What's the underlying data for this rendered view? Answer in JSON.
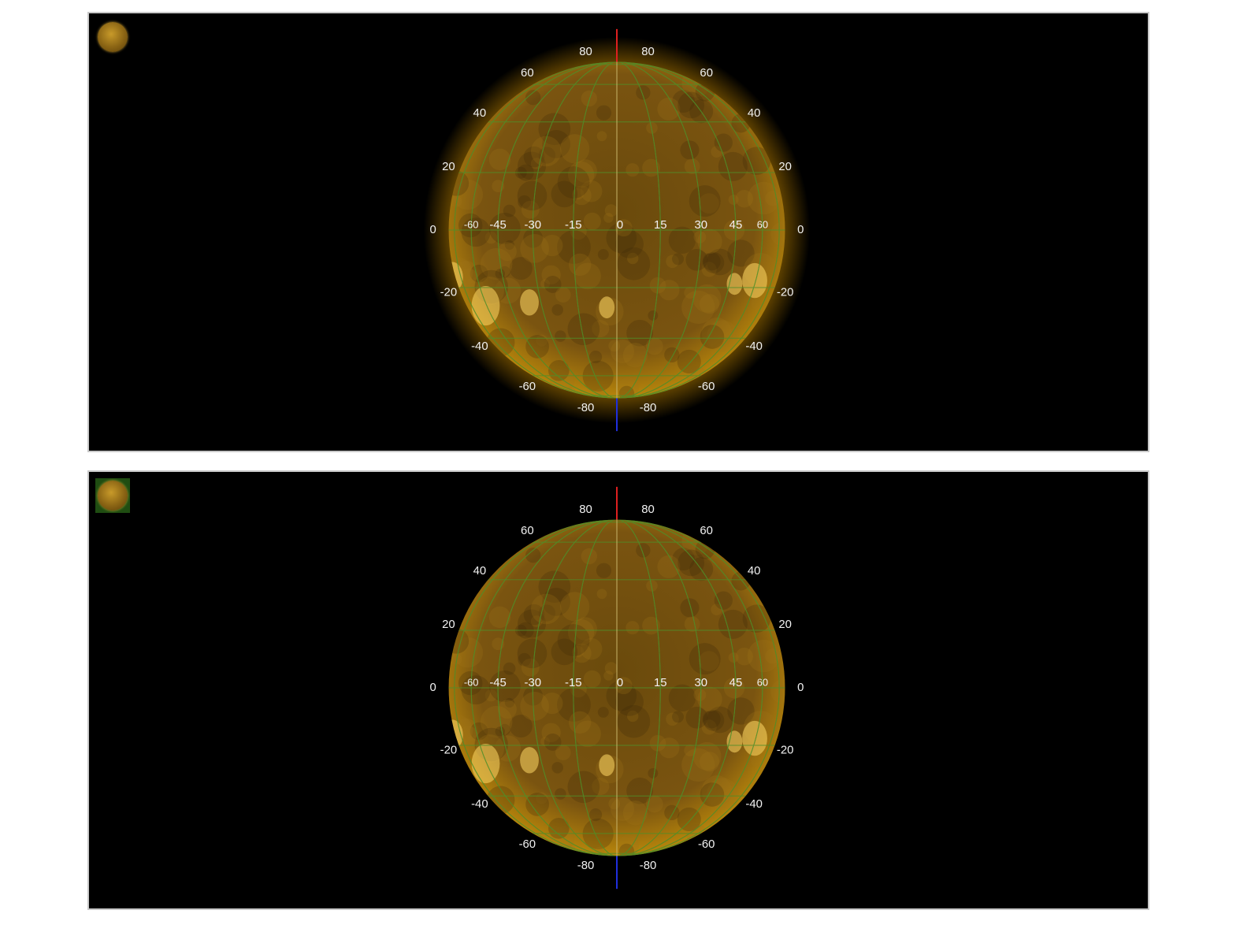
{
  "panels": [
    {
      "id": "top",
      "thumbnail_selected": false,
      "corona_glow": true,
      "lat_labels_left": [
        "80",
        "60",
        "40",
        "20",
        "0",
        "-20",
        "-40",
        "-60",
        "-80"
      ],
      "lat_labels_right": [
        "80",
        "60",
        "40",
        "20",
        "0",
        "-20",
        "-40",
        "-60",
        "-80"
      ],
      "lon_labels": [
        "-60",
        "-45",
        "-30",
        "-15",
        "0",
        "15",
        "30",
        "45",
        "60"
      ]
    },
    {
      "id": "bottom",
      "thumbnail_selected": true,
      "corona_glow": false,
      "lat_labels_left": [
        "80",
        "60",
        "40",
        "20",
        "0",
        "-20",
        "-40",
        "-60",
        "-80"
      ],
      "lat_labels_right": [
        "80",
        "60",
        "40",
        "20",
        "0",
        "-20",
        "-40",
        "-60",
        "-80"
      ],
      "lon_labels": [
        "-60",
        "-45",
        "-30",
        "-15",
        "0",
        "15",
        "30",
        "45",
        "60"
      ]
    }
  ],
  "colors": {
    "disk_core": "#7a5410",
    "disk_edge": "#b8860b",
    "grid": "#4f8f2a",
    "north_axis": "#e02020",
    "south_axis": "#2030e0",
    "background": "#000000"
  }
}
